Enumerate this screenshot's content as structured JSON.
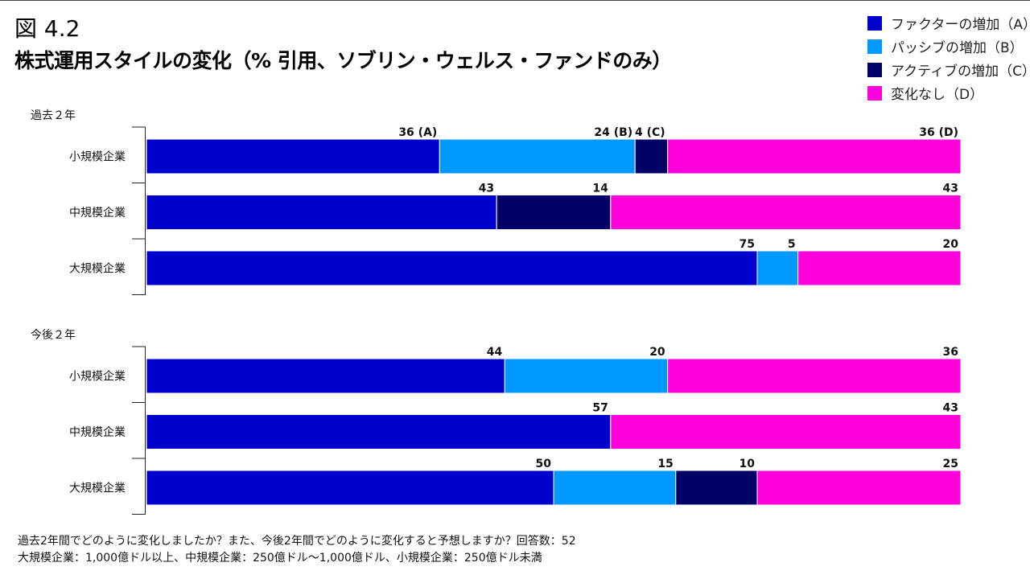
{
  "figure_label": "図 4.2",
  "title": "株式運用スタイルの変化（% 引用、ソブリン・ウェルス・ファンドのみ）",
  "colors": {
    "A": "#0000CC",
    "B": "#0099FF",
    "C": "#000066",
    "D": "#FF00DD"
  },
  "legend": [
    {
      "key": "A",
      "label": "ファクターの増加（A）"
    },
    {
      "key": "B",
      "label": "パッシブの増加（B）"
    },
    {
      "key": "C",
      "label": "アクティブの増加（C）"
    },
    {
      "key": "D",
      "label": "変化なし（D）"
    }
  ],
  "chart_data": {
    "type": "bar",
    "orientation": "horizontal",
    "stacked": true,
    "xlim": [
      0,
      100
    ],
    "grid": false,
    "series_keys": [
      "A",
      "B",
      "C",
      "D"
    ],
    "groups": [
      {
        "name": "過去２年",
        "rows": [
          {
            "category": "小規模企業",
            "values": [
              36,
              24,
              4,
              36
            ],
            "labels": [
              "36 (A)",
              "24 (B)",
              "4 (C)",
              "36 (D)"
            ]
          },
          {
            "category": "中規模企業",
            "values": [
              43,
              0,
              14,
              43
            ],
            "labels": [
              "43",
              "",
              "14",
              "43"
            ]
          },
          {
            "category": "大規模企業",
            "values": [
              75,
              5,
              0,
              20
            ],
            "labels": [
              "75",
              "5",
              "",
              "20"
            ]
          }
        ]
      },
      {
        "name": "今後２年",
        "rows": [
          {
            "category": "小規模企業",
            "values": [
              44,
              20,
              0,
              36
            ],
            "labels": [
              "44",
              "20",
              "",
              "36"
            ]
          },
          {
            "category": "中規模企業",
            "values": [
              57,
              0,
              0,
              43
            ],
            "labels": [
              "57",
              "",
              "",
              "43"
            ]
          },
          {
            "category": "大規模企業",
            "values": [
              50,
              15,
              10,
              25
            ],
            "labels": [
              "50",
              "15",
              "10",
              "25"
            ]
          }
        ]
      }
    ]
  },
  "footnotes": [
    "過去2年間でどのように変化しましたか？また、今後2年間でどのように変化すると予想しますか？回答数：52",
    "大規模企業：1,000億ドル以上、中規模企業：250億ドル～1,000億ドル、小規模企業：250億ドル未満"
  ]
}
